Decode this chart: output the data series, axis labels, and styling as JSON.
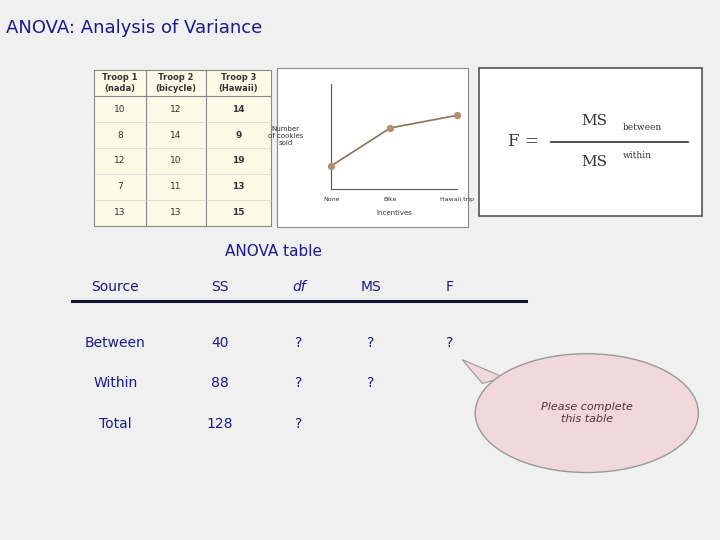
{
  "title": "ANOVA: Analysis of Variance",
  "title_color": "#1a1a8c",
  "background_color": "#f0f0f0",
  "table_title": "ANOVA table",
  "table_headers": [
    "Source",
    "SS",
    "df",
    "MS",
    "F"
  ],
  "table_rows": [
    [
      "Between",
      "40",
      "?",
      "?",
      "?"
    ],
    [
      "Within",
      "88",
      "?",
      "?",
      ""
    ],
    [
      "Total",
      "128",
      "?",
      "",
      ""
    ]
  ],
  "data_table_headers": [
    "Troop 1\n(nada)",
    "Troop 2\n(bicycle)",
    "Troop 3\n(Hawaii)"
  ],
  "data_table_values": [
    [
      "10",
      "12",
      "14"
    ],
    [
      "8",
      "14",
      "9"
    ],
    [
      "12",
      "10",
      "19"
    ],
    [
      "7",
      "11",
      "13"
    ],
    [
      "13",
      "13",
      "15"
    ]
  ],
  "callout_text": "Please complete\nthis table",
  "callout_color": "#f0d8dc",
  "callout_edge": "#999999",
  "text_color": "#1a1a8c",
  "table_text_color": "#333333",
  "plot_line_color": "#8b7355",
  "plot_point_color": "#b09070",
  "plot_x_labels": [
    "None",
    "Bike",
    "Hawaii trip"
  ],
  "plot_x_label": "Incentives",
  "plot_y_label": "Number\nof cookies\nsold",
  "formula_color": "#333333"
}
